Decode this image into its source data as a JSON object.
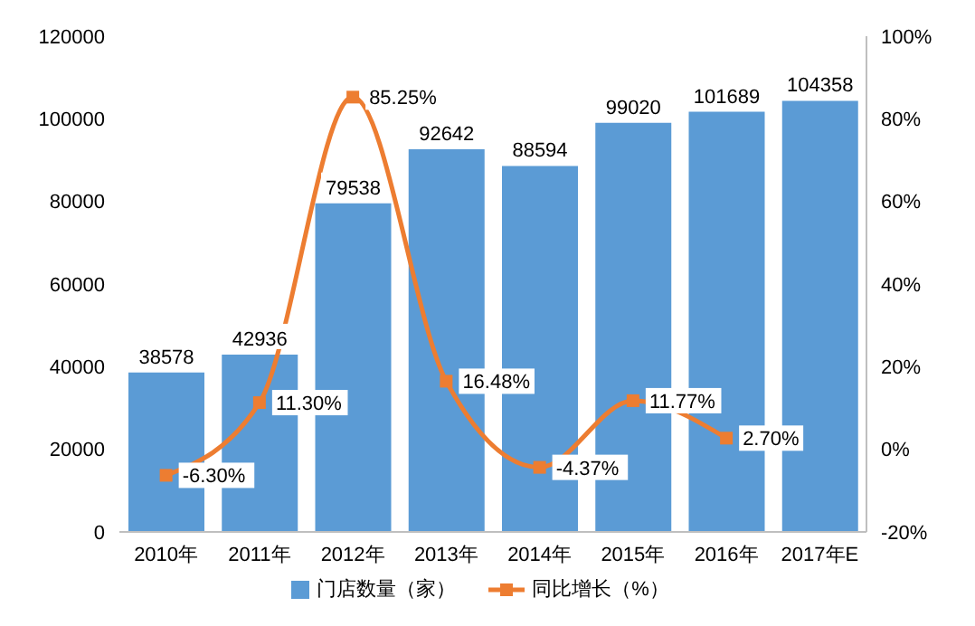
{
  "chart_data": {
    "type": "bar",
    "categories": [
      "2010年",
      "2011年",
      "2012年",
      "2013年",
      "2014年",
      "2015年",
      "2016年",
      "2017年E"
    ],
    "series": [
      {
        "name": "门店数量（家）",
        "color": "#5b9bd5",
        "values": [
          38578,
          42936,
          79538,
          92642,
          88594,
          99020,
          101689,
          104358
        ],
        "value_labels": [
          "38578",
          "42936",
          "79538",
          "92642",
          "88594",
          "99020",
          "101689",
          "104358"
        ]
      },
      {
        "name": "同比增长（%）",
        "type": "line",
        "axis": "y2",
        "color": "#ed7d31",
        "values": [
          -6.3,
          11.3,
          85.25,
          16.48,
          -4.37,
          11.77,
          2.7,
          null
        ],
        "value_labels": [
          "-6.30%",
          "11.30%",
          "85.25%",
          "16.48%",
          "-4.37%",
          "11.77%",
          "2.70%",
          null
        ]
      }
    ],
    "ylim": [
      0,
      120000
    ],
    "yticks": [
      0,
      20000,
      40000,
      60000,
      80000,
      100000,
      120000
    ],
    "y2lim": [
      -20,
      100
    ],
    "y2ticks": [
      {
        "value": -20,
        "label": "-20%"
      },
      {
        "value": 0,
        "label": "0%"
      },
      {
        "value": 20,
        "label": "20%"
      },
      {
        "value": 40,
        "label": "40%"
      },
      {
        "value": 60,
        "label": "60%"
      },
      {
        "value": 80,
        "label": "80%"
      },
      {
        "value": 100,
        "label": "100%"
      }
    ],
    "grid": false,
    "legend": "bottom",
    "marker": "square",
    "line_style": "solid"
  }
}
